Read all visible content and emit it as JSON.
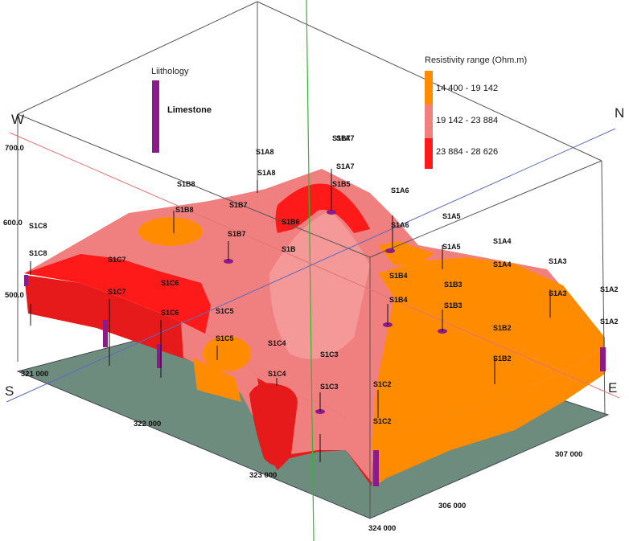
{
  "lithology": {
    "title": "Liithology",
    "item": {
      "label": "Limestone",
      "color": "#8b1a8b"
    }
  },
  "resistivity": {
    "title": "Resistivity range (Ohm.m)",
    "ranges": [
      {
        "label": "14 400 - 19 142",
        "color": "#ff8c00"
      },
      {
        "label": "19 142 - 23 884",
        "color": "#f08080"
      },
      {
        "label": "23 884 - 28 626",
        "color": "#ff1a1a"
      }
    ]
  },
  "directions": {
    "north": "N",
    "south": "S",
    "east": "E",
    "west": "W"
  },
  "elevation_ticks": [
    "700.0",
    "600.0",
    "500.0"
  ],
  "coordinates": {
    "x_axis": [
      "321 000",
      "322 000",
      "323 000",
      "324 000"
    ],
    "y_axis": [
      "306 000",
      "307 000"
    ]
  },
  "boreholes": [
    "S1A8",
    "S1A8",
    "S1B7",
    "S1A7",
    "S1A7",
    "S1B5",
    "S1A6",
    "S1A6",
    "S1B8",
    "S1B8",
    "S1B7",
    "S1B6",
    "S1C8",
    "S1C8",
    "S1A5",
    "S1A5",
    "S1B7",
    "S1B",
    "S1A4",
    "S1A4",
    "S1A3",
    "S1A3",
    "S1C7",
    "S1C6",
    "S1B4",
    "S1B3",
    "S1A2",
    "S1C7",
    "S1C6",
    "S1C5",
    "S1B4",
    "S1B3",
    "S1B2",
    "S1A2",
    "S1C5",
    "S1C4",
    "S1C3",
    "S1B2",
    "S1C4",
    "S1C3",
    "S1C2",
    "S1C2"
  ]
}
